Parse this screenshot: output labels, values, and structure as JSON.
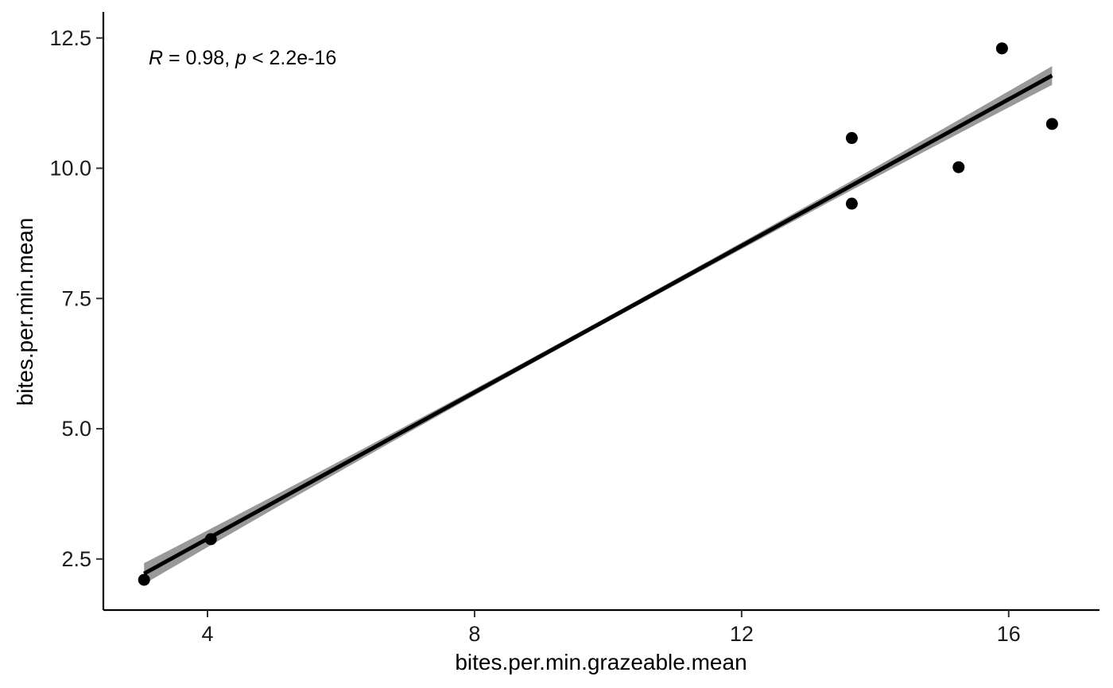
{
  "chart_data": {
    "type": "scatter",
    "title": "",
    "xlabel": "bites.per.min.grazeable.mean",
    "ylabel": "bites.per.min.mean",
    "xlim": [
      2.44,
      17.36
    ],
    "ylim": [
      1.52,
      13.0
    ],
    "x_ticks": [
      4,
      8,
      12,
      16
    ],
    "x_tick_labels": [
      "4",
      "8",
      "12",
      "16"
    ],
    "y_ticks": [
      2.5,
      5.0,
      7.5,
      10.0,
      12.5
    ],
    "y_tick_labels": [
      "2.5",
      "5.0",
      "7.5",
      "10.0",
      "12.5"
    ],
    "grid": false,
    "legend": "none",
    "series": [
      {
        "points": [
          {
            "x": 3.05,
            "y": 2.1
          },
          {
            "x": 4.05,
            "y": 2.88
          },
          {
            "x": 13.65,
            "y": 10.58
          },
          {
            "x": 13.65,
            "y": 9.32
          },
          {
            "x": 15.25,
            "y": 10.02
          },
          {
            "x": 15.9,
            "y": 12.3
          },
          {
            "x": 16.65,
            "y": 10.85
          }
        ]
      }
    ],
    "fit": {
      "method": "linear",
      "start": {
        "x": 3.05,
        "y": 2.22
      },
      "end": {
        "x": 16.65,
        "y": 11.78
      },
      "ci_halfwidth_start": 0.2,
      "ci_halfwidth_mid": 0.05,
      "ci_halfwidth_end": 0.18
    },
    "annotation": {
      "r_symbol": "R",
      "r_text": " = 0.98, ",
      "p_symbol": "p",
      "p_text": " < 2.2e-16"
    },
    "colors": {
      "points": "#000000",
      "line": "#000000",
      "ribbon": "#999999"
    }
  }
}
